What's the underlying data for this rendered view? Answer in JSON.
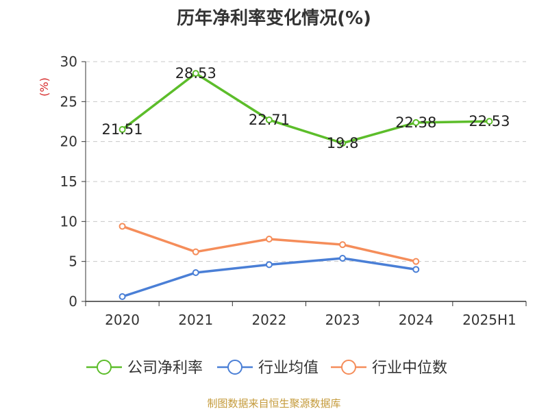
{
  "chart_data": {
    "type": "line",
    "title": "历年净利率变化情况(%)",
    "ylabel": "(%)",
    "xlabel": "",
    "categories": [
      "2020",
      "2021",
      "2022",
      "2023",
      "2024",
      "2025H1"
    ],
    "ylim": [
      0,
      30
    ],
    "yticks": [
      0,
      5,
      10,
      15,
      20,
      25,
      30
    ],
    "grid": true,
    "legend_position": "bottom",
    "series": [
      {
        "name": "公司净利率",
        "color": "#5cbd2a",
        "show_labels": true,
        "values": [
          21.51,
          28.53,
          22.71,
          19.8,
          22.38,
          22.53
        ],
        "labels": [
          "21.51",
          "28.53",
          "22.71",
          "19.8",
          "22.38",
          "22.53"
        ]
      },
      {
        "name": "行业均值",
        "color": "#4a7fd6",
        "show_labels": false,
        "values": [
          0.6,
          3.6,
          4.6,
          5.4,
          4.0,
          null
        ]
      },
      {
        "name": "行业中位数",
        "color": "#f58d5a",
        "show_labels": false,
        "values": [
          9.4,
          6.2,
          7.8,
          7.1,
          5.0,
          null
        ]
      }
    ]
  },
  "source": "制图数据来自恒生聚源数据库"
}
